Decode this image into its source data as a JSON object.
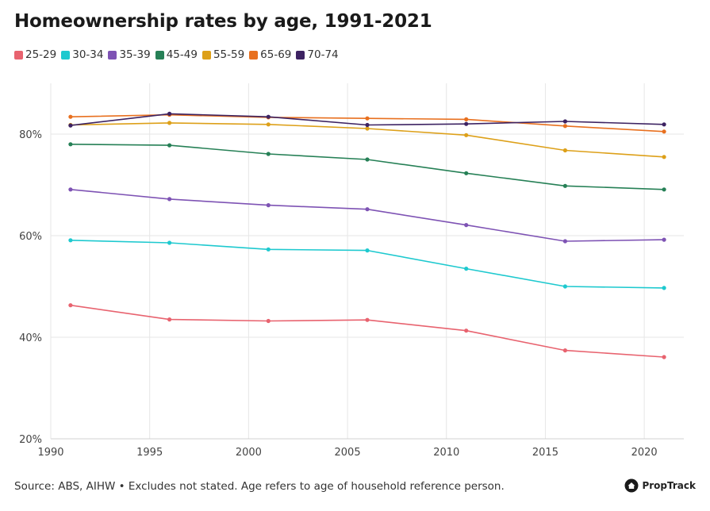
{
  "chart_data": {
    "type": "line",
    "title": "Homeownership rates by age, 1991-2021",
    "xlabel": "",
    "ylabel": "",
    "x": [
      1991,
      1996,
      2001,
      2006,
      2011,
      2016,
      2021
    ],
    "xlim": [
      1990,
      2022
    ],
    "ylim": [
      20,
      90
    ],
    "x_ticks": [
      1990,
      1995,
      2000,
      2005,
      2010,
      2015,
      2020
    ],
    "x_tick_labels": [
      "1990",
      "1995",
      "2000",
      "2005",
      "2010",
      "2015",
      "2020"
    ],
    "y_ticks": [
      20,
      40,
      60,
      80
    ],
    "y_tick_labels": [
      "20%",
      "40%",
      "60%",
      "80%"
    ],
    "grid": true,
    "legend_position": "top-left",
    "series": [
      {
        "name": "25-29",
        "color": "#e8636f",
        "values": [
          46.3,
          43.5,
          43.2,
          43.4,
          41.3,
          37.4,
          36.1
        ]
      },
      {
        "name": "30-34",
        "color": "#1ec9cf",
        "values": [
          59.1,
          58.6,
          57.3,
          57.1,
          53.5,
          50.0,
          49.7
        ]
      },
      {
        "name": "35-39",
        "color": "#7e53b4",
        "values": [
          69.1,
          67.2,
          66.0,
          65.2,
          62.1,
          58.9,
          59.2
        ]
      },
      {
        "name": "45-49",
        "color": "#268056",
        "values": [
          78.0,
          77.8,
          76.1,
          75.0,
          72.3,
          69.8,
          69.1
        ]
      },
      {
        "name": "55-59",
        "color": "#dda019",
        "values": [
          81.8,
          82.2,
          81.9,
          81.1,
          79.8,
          76.8,
          75.5
        ]
      },
      {
        "name": "65-69",
        "color": "#e8701f",
        "values": [
          83.4,
          83.8,
          83.3,
          83.1,
          82.9,
          81.6,
          80.5
        ]
      },
      {
        "name": "70-74",
        "color": "#3d2362",
        "values": [
          81.7,
          84.0,
          83.4,
          81.8,
          82.0,
          82.5,
          81.9
        ]
      }
    ]
  },
  "footer": {
    "source": "Source: ABS, AIHW • Excludes not stated. Age refers to age of household reference person."
  },
  "brand": {
    "name": "PropTrack",
    "icon": "house-icon"
  }
}
